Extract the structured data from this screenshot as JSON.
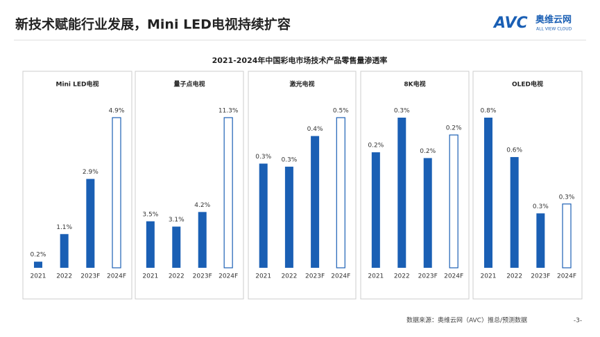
{
  "header": {
    "title": "新技术赋能行业发展，Mini LED电视持续扩容",
    "logo_mark": "AVC",
    "logo_name": "奥维云网",
    "logo_tagline": "ALL VIEW CLOUD"
  },
  "figure_title": "2021-2024年中国彩电市场技术产品零售量渗透率",
  "footer": {
    "source": "数据来源：奥维云网（AVC）推总/预测数据",
    "page": "-3-"
  },
  "chart_data": [
    {
      "type": "bar",
      "title": "Mini LED电视",
      "categories": [
        "2021",
        "2022",
        "2023F",
        "2024F"
      ],
      "values": [
        0.2,
        1.1,
        2.9,
        4.9
      ],
      "value_labels": [
        "0.2%",
        "1.1%",
        "2.9%",
        "4.9%"
      ],
      "color": "#1a5fb4",
      "hollow": [
        false,
        false,
        false,
        true
      ]
    },
    {
      "type": "bar",
      "title": "量子点电视",
      "categories": [
        "2021",
        "2022",
        "2023F",
        "2024F"
      ],
      "values": [
        3.5,
        3.1,
        4.2,
        11.3
      ],
      "value_labels": [
        "3.5%",
        "3.1%",
        "4.2%",
        "11.3%"
      ],
      "color": "#1a5fb4",
      "hollow": [
        false,
        false,
        false,
        true
      ]
    },
    {
      "type": "bar",
      "title": "激光电视",
      "categories": [
        "2021",
        "2022",
        "2023F",
        "2024F"
      ],
      "values": [
        0.34,
        0.33,
        0.43,
        0.49
      ],
      "value_labels": [
        "0.3%",
        "0.3%",
        "0.4%",
        "0.5%"
      ],
      "color": "#1a5fb4",
      "hollow": [
        false,
        false,
        false,
        true
      ]
    },
    {
      "type": "bar",
      "title": "8K电视",
      "categories": [
        "2021",
        "2022",
        "2023F",
        "2024F"
      ],
      "values": [
        0.2,
        0.26,
        0.19,
        0.23
      ],
      "value_labels": [
        "0.2%",
        "0.3%",
        "0.2%",
        "0.2%"
      ],
      "color": "#1a5fb4",
      "hollow": [
        false,
        false,
        false,
        true
      ]
    },
    {
      "type": "bar",
      "title": "OLED电视",
      "categories": [
        "2021",
        "2022",
        "2023F",
        "2024F"
      ],
      "values": [
        0.8,
        0.59,
        0.29,
        0.34
      ],
      "value_labels": [
        "0.8%",
        "0.6%",
        "0.3%",
        "0.3%"
      ],
      "color": "#1a5fb4",
      "hollow": [
        false,
        false,
        false,
        true
      ]
    }
  ]
}
